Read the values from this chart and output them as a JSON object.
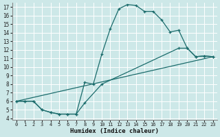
{
  "xlabel": "Humidex (Indice chaleur)",
  "bg_color": "#cde8e8",
  "grid_color": "#ffffff",
  "line_color": "#1a6b6b",
  "xlim": [
    -0.5,
    23.5
  ],
  "ylim": [
    3.8,
    17.5
  ],
  "xticks": [
    0,
    1,
    2,
    3,
    4,
    5,
    6,
    7,
    8,
    9,
    10,
    11,
    12,
    13,
    14,
    15,
    16,
    17,
    18,
    19,
    20,
    21,
    22,
    23
  ],
  "yticks": [
    4,
    5,
    6,
    7,
    8,
    9,
    10,
    11,
    12,
    13,
    14,
    15,
    16,
    17
  ],
  "line1_x": [
    0,
    1,
    2,
    3,
    4,
    5,
    6,
    7,
    8,
    9,
    10,
    11,
    12,
    13,
    14,
    15,
    16,
    17,
    18,
    19,
    20,
    21,
    22,
    23
  ],
  "line1_y": [
    6.0,
    6.0,
    6.0,
    5.0,
    4.7,
    4.5,
    4.5,
    4.5,
    8.2,
    8.0,
    11.5,
    14.5,
    16.8,
    17.3,
    17.2,
    16.5,
    16.5,
    15.5,
    14.1,
    14.3,
    12.2,
    11.2,
    11.3,
    11.2
  ],
  "line2_x": [
    0,
    1,
    2,
    3,
    4,
    5,
    6,
    7,
    8,
    10,
    19,
    20,
    21,
    22,
    23
  ],
  "line2_y": [
    6.0,
    6.0,
    6.0,
    5.0,
    4.7,
    4.5,
    4.5,
    4.5,
    5.8,
    8.0,
    12.2,
    12.2,
    11.2,
    11.3,
    11.2
  ],
  "line3_x": [
    0,
    23
  ],
  "line3_y": [
    6.0,
    11.2
  ]
}
